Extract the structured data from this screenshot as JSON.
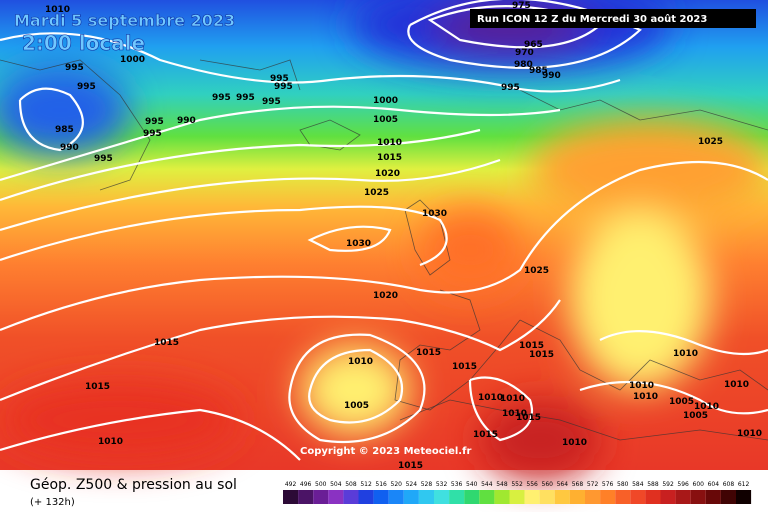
{
  "header": {
    "date": "Mardi 5 septembre 2023",
    "time": "2:00 locale",
    "run": "Run ICON 12 Z du Mercredi 30 août 2023"
  },
  "copyright": "Copyright © 2023 Meteociel.fr",
  "footer": {
    "label": "Géop. Z500 & pression au sol",
    "lead": "(+ 132h)"
  },
  "isobar_labels": [
    1010,
    1000,
    995,
    995,
    985,
    990,
    995,
    995,
    995,
    990,
    995,
    995,
    995,
    995,
    995,
    975,
    965,
    970,
    980,
    985,
    990,
    995,
    1000,
    1005,
    1010,
    1015,
    1020,
    1025,
    1030,
    1030,
    1025,
    1025,
    1020,
    1015,
    1015,
    1010,
    1010,
    1005,
    1015,
    1015,
    1015,
    1015,
    1010,
    1010,
    1010,
    1010,
    1010,
    1010,
    1015,
    1010,
    1005,
    1010,
    1005,
    1015,
    1010,
    1010,
    1015
  ],
  "colorbar": {
    "ticks": [
      492,
      496,
      500,
      504,
      508,
      512,
      516,
      520,
      524,
      528,
      532,
      536,
      540,
      544,
      548,
      552,
      556,
      560,
      564,
      568,
      572,
      576,
      580,
      584,
      588,
      592,
      596,
      600,
      604,
      608,
      612
    ],
    "colors": [
      "#2c0a36",
      "#4b1466",
      "#6a1e96",
      "#8a32c2",
      "#5a3cd8",
      "#2040e0",
      "#1060f0",
      "#1a86f8",
      "#20a8f8",
      "#30c8f0",
      "#40e0e0",
      "#30e0a8",
      "#30d870",
      "#60e040",
      "#a0e830",
      "#d8f040",
      "#fff070",
      "#ffe060",
      "#ffc840",
      "#ffb030",
      "#ff9830",
      "#ff8028",
      "#f86028",
      "#f04828",
      "#e03020",
      "#c82020",
      "#a81818",
      "#881010",
      "#680808",
      "#400404",
      "#100000"
    ]
  }
}
